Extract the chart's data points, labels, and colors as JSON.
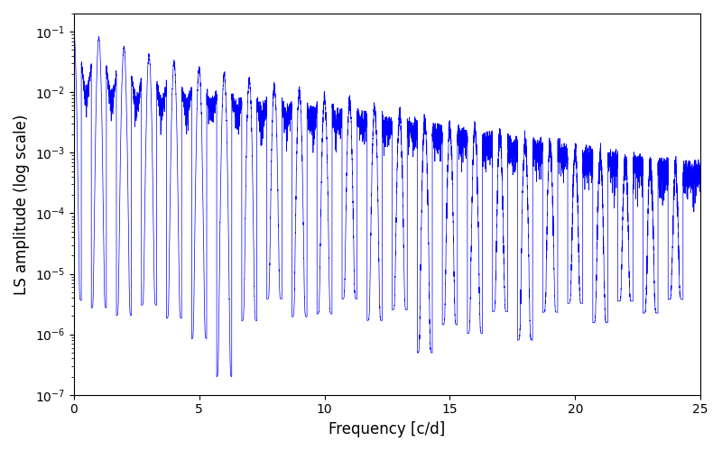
{
  "line_color": "#0000ff",
  "xlabel": "Frequency [c/d]",
  "ylabel": "LS amplitude (log scale)",
  "xlim": [
    0,
    25
  ],
  "ylim": [
    1e-08,
    1.0
  ],
  "yscale": "log",
  "background_color": "#ffffff",
  "figsize": [
    8.0,
    5.0
  ],
  "dpi": 100
}
